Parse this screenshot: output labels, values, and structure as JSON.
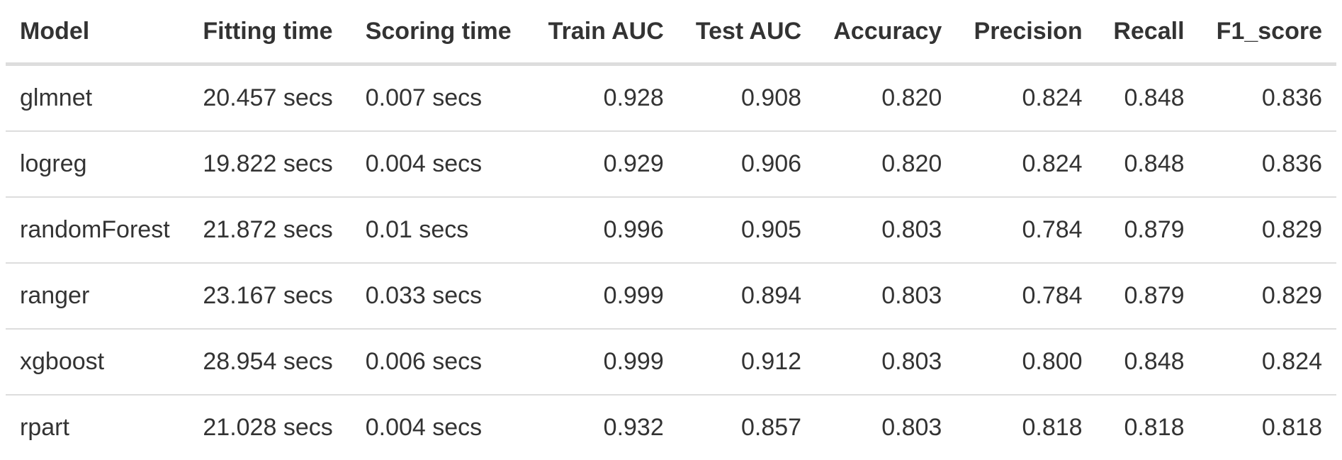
{
  "table": {
    "columns": [
      {
        "label": "Model",
        "align": "left"
      },
      {
        "label": "Fitting time",
        "align": "left"
      },
      {
        "label": "Scoring time",
        "align": "left"
      },
      {
        "label": "Train AUC",
        "align": "right"
      },
      {
        "label": "Test AUC",
        "align": "right"
      },
      {
        "label": "Accuracy",
        "align": "right"
      },
      {
        "label": "Precision",
        "align": "right"
      },
      {
        "label": "Recall",
        "align": "right"
      },
      {
        "label": "F1_score",
        "align": "right"
      }
    ],
    "rows": [
      [
        "glmnet",
        "20.457 secs",
        "0.007 secs",
        "0.928",
        "0.908",
        "0.820",
        "0.824",
        "0.848",
        "0.836"
      ],
      [
        "logreg",
        "19.822 secs",
        "0.004 secs",
        "0.929",
        "0.906",
        "0.820",
        "0.824",
        "0.848",
        "0.836"
      ],
      [
        "randomForest",
        "21.872 secs",
        "0.01 secs",
        "0.996",
        "0.905",
        "0.803",
        "0.784",
        "0.879",
        "0.829"
      ],
      [
        "ranger",
        "23.167 secs",
        "0.033 secs",
        "0.999",
        "0.894",
        "0.803",
        "0.784",
        "0.879",
        "0.829"
      ],
      [
        "xgboost",
        "28.954 secs",
        "0.006 secs",
        "0.999",
        "0.912",
        "0.803",
        "0.800",
        "0.848",
        "0.824"
      ],
      [
        "rpart",
        "21.028 secs",
        "0.004 secs",
        "0.932",
        "0.857",
        "0.803",
        "0.818",
        "0.818",
        "0.818"
      ]
    ]
  },
  "colors": {
    "text": "#333333",
    "rule": "#dddddd",
    "background": "#ffffff"
  }
}
